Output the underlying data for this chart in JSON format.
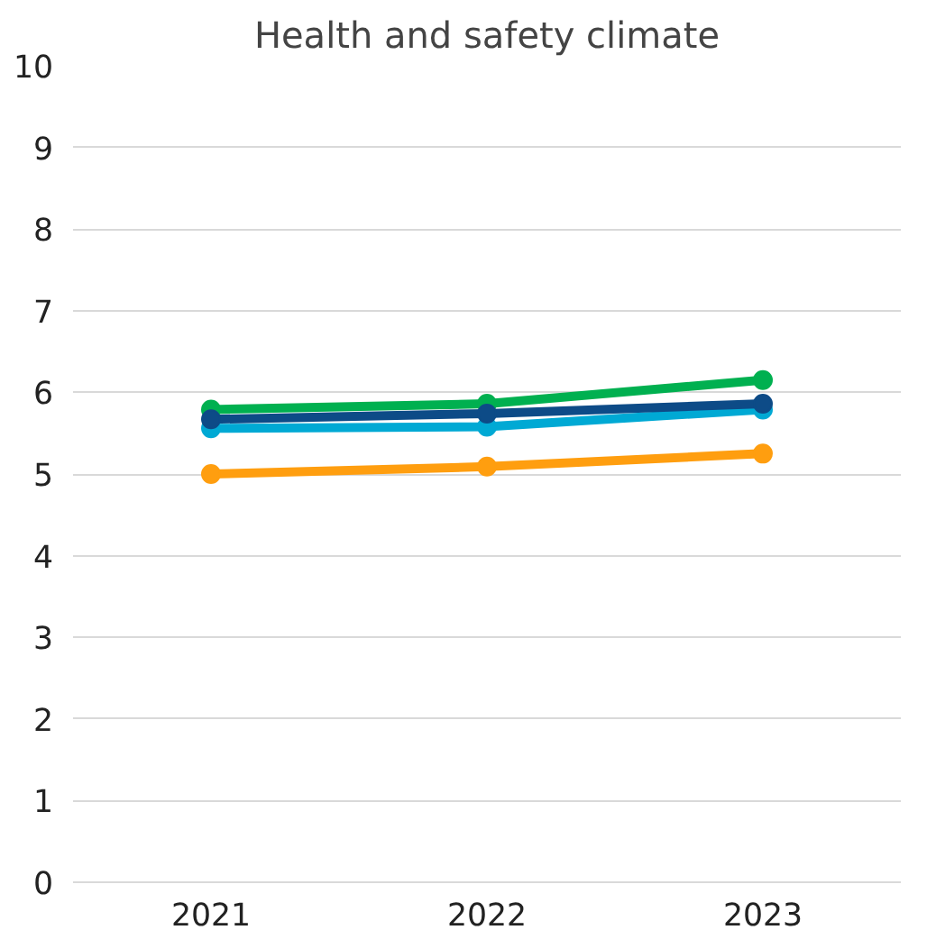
{
  "chart_data": {
    "type": "line",
    "title": "Health and safety climate",
    "categories": [
      "2021",
      "2022",
      "2023"
    ],
    "series": [
      {
        "color": "#ff9e0f",
        "values": [
          5.0,
          5.09,
          5.25
        ]
      },
      {
        "color": "#00a9d4",
        "values": [
          5.56,
          5.58,
          5.79
        ]
      },
      {
        "color": "#00b050",
        "values": [
          5.79,
          5.86,
          6.15
        ]
      },
      {
        "color": "#0d4b87",
        "values": [
          5.67,
          5.74,
          5.86
        ]
      }
    ],
    "ylim": [
      0,
      10
    ],
    "yticks": [
      0,
      1,
      2,
      3,
      4,
      5,
      6,
      7,
      8,
      9,
      10
    ],
    "grid": "y",
    "marker": "circle",
    "line_style": "solid"
  }
}
